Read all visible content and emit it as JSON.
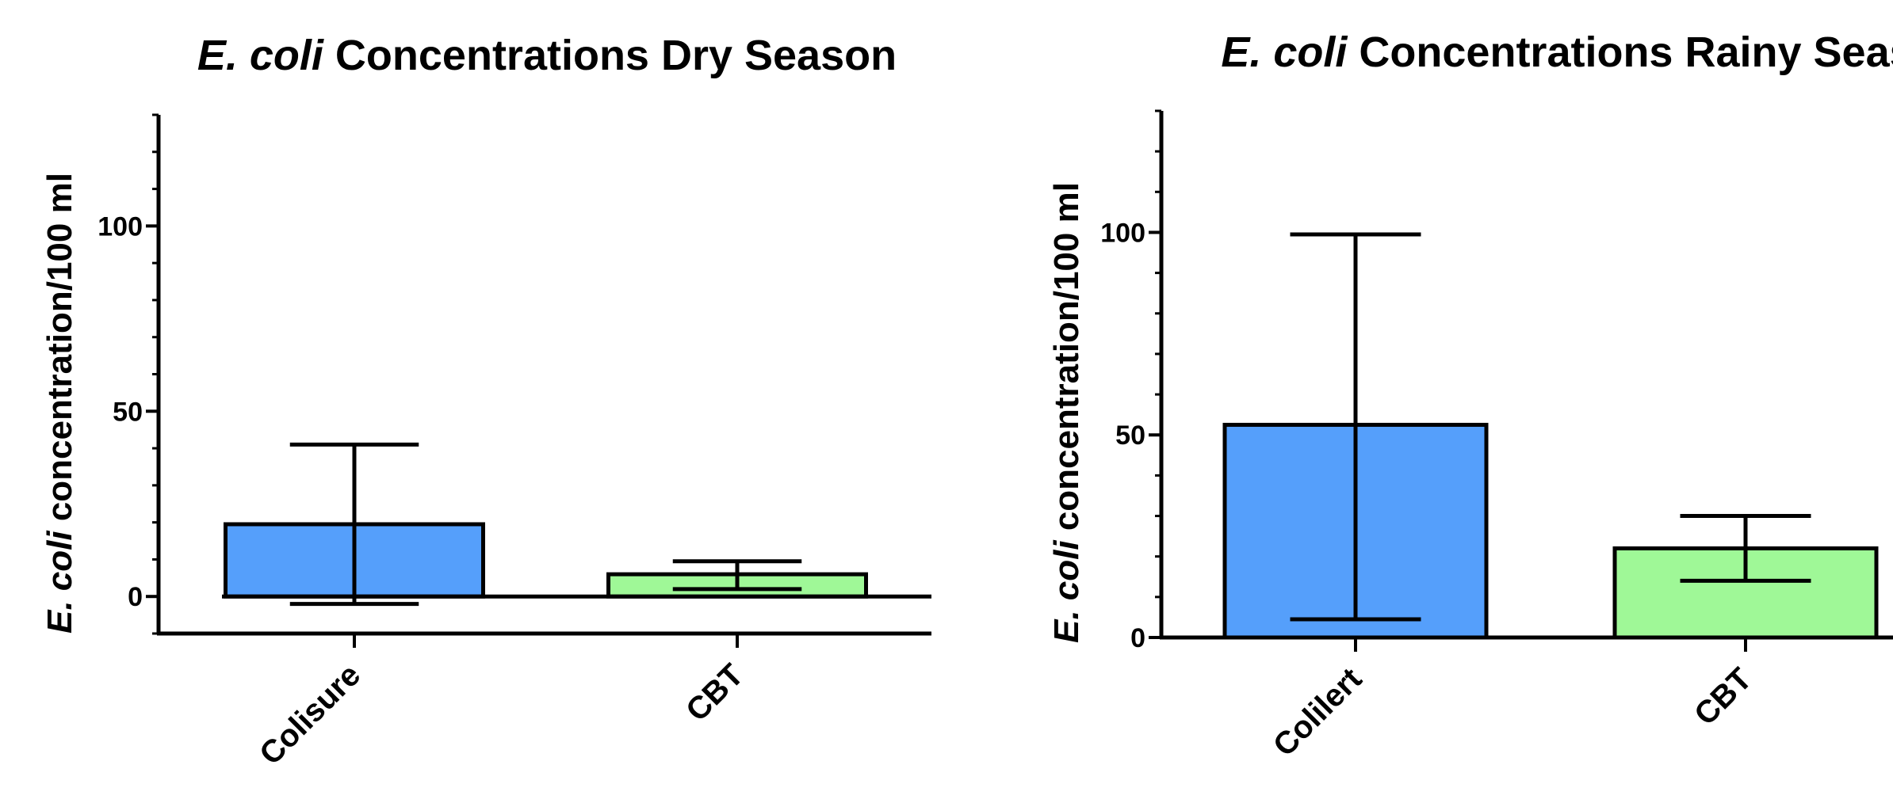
{
  "chart_data": [
    {
      "type": "bar",
      "title_italic": "E. coli",
      "title_rest": " Concentrations Dry Season",
      "ylabel_italic": "E. coli",
      "ylabel_rest": " concentration/100 ml",
      "categories": [
        "Colisure",
        "CBT"
      ],
      "values": [
        19.5,
        6
      ],
      "errors_upper": [
        41,
        9.5
      ],
      "errors_lower": [
        -2,
        2
      ],
      "bar_colors": [
        "#559ffb",
        "#9ff897"
      ],
      "ylim": [
        -10,
        130
      ],
      "yticks": [
        0,
        50,
        100
      ],
      "zero_line": true,
      "grid": false
    },
    {
      "type": "bar",
      "title_italic": "E. coli",
      "title_rest": " Concentrations Rainy Season",
      "ylabel_italic": "E. coli",
      "ylabel_rest": " concentration/100 ml",
      "categories": [
        "Colilert",
        "CBT"
      ],
      "values": [
        52.5,
        22
      ],
      "errors_upper": [
        99.5,
        30
      ],
      "errors_lower": [
        4.5,
        14
      ],
      "bar_colors": [
        "#559ffb",
        "#9ff897"
      ],
      "ylim": [
        0,
        130
      ],
      "yticks": [
        0,
        50,
        100
      ],
      "zero_line": false,
      "grid": false
    }
  ]
}
